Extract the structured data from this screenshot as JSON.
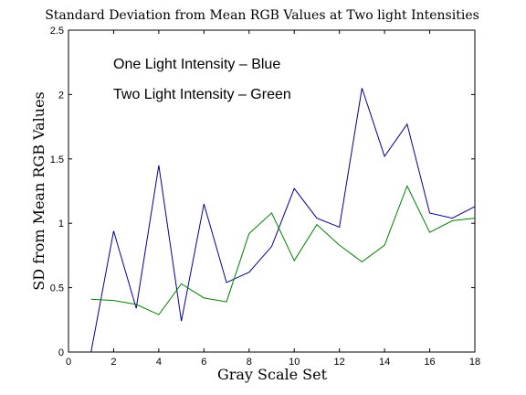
{
  "chart_data": {
    "type": "line",
    "title": "Standard Deviation from Mean RGB Values at Two light Intensities",
    "xlabel": "Gray Scale Set",
    "ylabel": "SD from Mean RGB Values",
    "xlim": [
      0,
      18
    ],
    "ylim": [
      0,
      2.5
    ],
    "xticks": [
      "0",
      "2",
      "4",
      "6",
      "8",
      "10",
      "12",
      "14",
      "16",
      "18"
    ],
    "yticks": [
      "0",
      "0.5",
      "1",
      "1.5",
      "2",
      "2.5"
    ],
    "grid": false,
    "annotations": [
      "One Light Intensity – Blue",
      "Two Light Intensity – Green"
    ],
    "x": [
      1,
      2,
      3,
      4,
      5,
      6,
      7,
      8,
      9,
      10,
      11,
      12,
      13,
      14,
      15,
      16,
      17,
      18
    ],
    "series": [
      {
        "color": "#00008f",
        "values": [
          0.0,
          0.94,
          0.34,
          1.45,
          0.24,
          1.15,
          0.54,
          0.62,
          0.82,
          1.27,
          1.04,
          0.97,
          2.05,
          1.52,
          1.77,
          1.08,
          1.04,
          1.13
        ]
      },
      {
        "color": "#007f00",
        "values": [
          0.41,
          0.4,
          0.37,
          0.29,
          0.53,
          0.42,
          0.39,
          0.92,
          1.08,
          0.71,
          0.99,
          0.83,
          0.7,
          0.83,
          1.29,
          0.93,
          1.02,
          1.04
        ]
      }
    ]
  }
}
